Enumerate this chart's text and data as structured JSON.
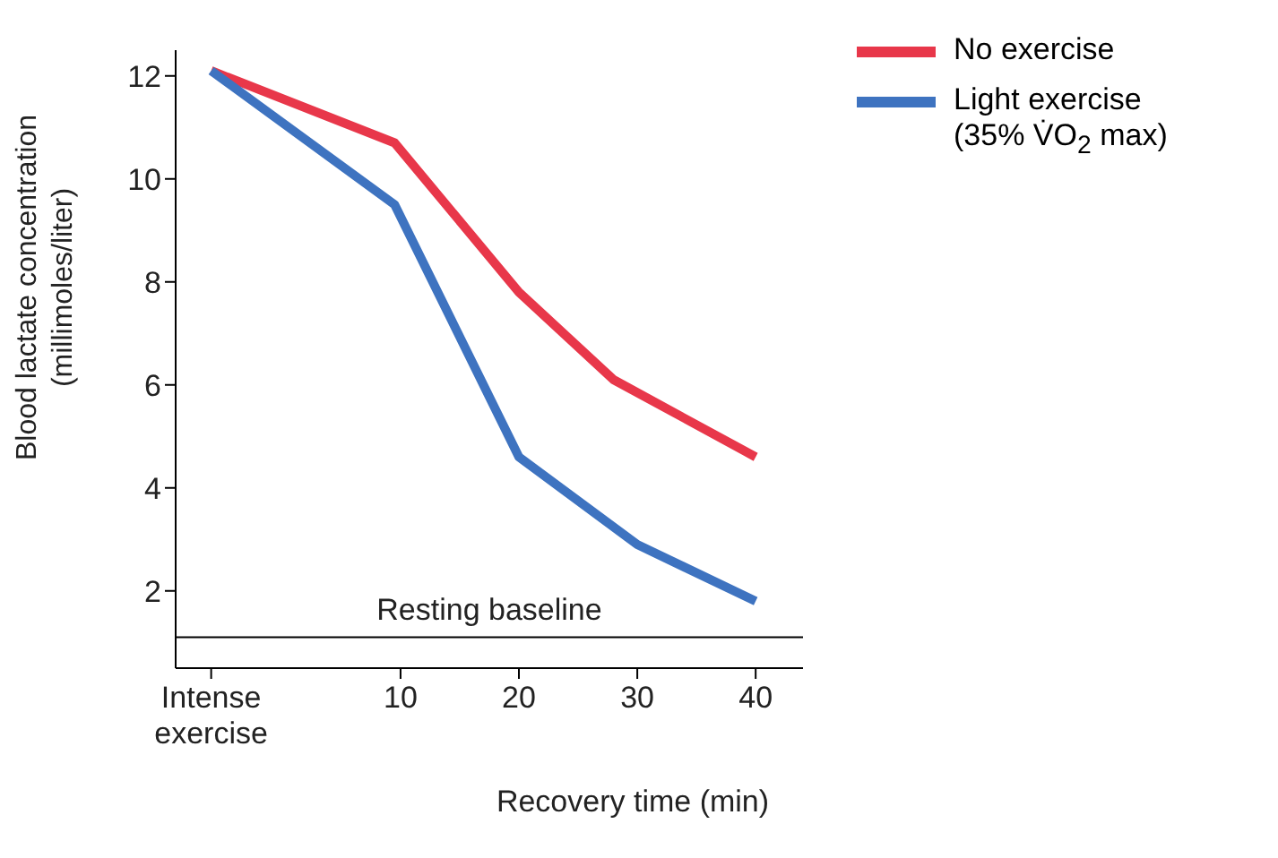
{
  "chart_data": {
    "type": "line",
    "xlabel": "Recovery time (min)",
    "ylabel": "Blood lactate concentration (millimoles/liter)",
    "xlim": [
      -9,
      44
    ],
    "xticks": [
      {
        "value": -6,
        "label": "Intense exercise"
      },
      10,
      20,
      30,
      40
    ],
    "ylim": [
      0.5,
      12.5
    ],
    "yticks": [
      2,
      4,
      6,
      8,
      10,
      12
    ],
    "series": [
      {
        "name": "No exercise",
        "color": "#e8374a",
        "x": [
          -6,
          9.5,
          20,
          28,
          40
        ],
        "values": [
          12.1,
          10.7,
          7.8,
          6.1,
          4.6
        ]
      },
      {
        "name": "Light exercise (35% V̇O$_{2}$ max)",
        "color": "#3e73c0",
        "x": [
          -6,
          9.5,
          20,
          30,
          40
        ],
        "values": [
          12.1,
          9.5,
          4.6,
          2.9,
          1.8
        ]
      }
    ],
    "ref_lines": [
      {
        "axis": "y",
        "value": 1.1,
        "label": "Resting baseline",
        "color": "#000000"
      }
    ],
    "legend": "top right",
    "grid": false,
    "marker": "none",
    "line_style": "solid"
  }
}
